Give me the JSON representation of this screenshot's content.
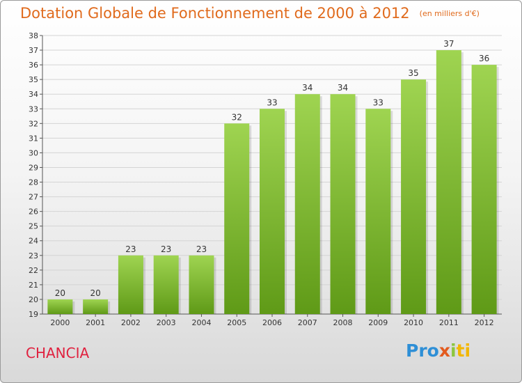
{
  "title": "Dotation Globale de Fonctionnement de 2000 à 2012",
  "subtitle": "(en milliers d'€)",
  "commune": "CHANCIA",
  "logo": {
    "p1": "Pro",
    "p2": "x",
    "p3": "i",
    "p4": "ti"
  },
  "colors": {
    "bar_top": "#9fd451",
    "bar_bottom": "#5f9a17",
    "title": "#e06a1c",
    "commune": "#e0213f"
  },
  "chart_data": {
    "type": "bar",
    "categories": [
      "2000",
      "2001",
      "2002",
      "2003",
      "2004",
      "2005",
      "2006",
      "2007",
      "2008",
      "2009",
      "2010",
      "2011",
      "2012"
    ],
    "values": [
      20,
      20,
      23,
      23,
      23,
      32,
      33,
      34,
      34,
      33,
      35,
      37,
      36
    ],
    "ylim": [
      19,
      38
    ],
    "yticks": [
      19,
      20,
      21,
      22,
      23,
      24,
      25,
      26,
      27,
      28,
      29,
      30,
      31,
      32,
      33,
      34,
      35,
      36,
      37,
      38
    ],
    "grid": true,
    "data_labels": true
  }
}
